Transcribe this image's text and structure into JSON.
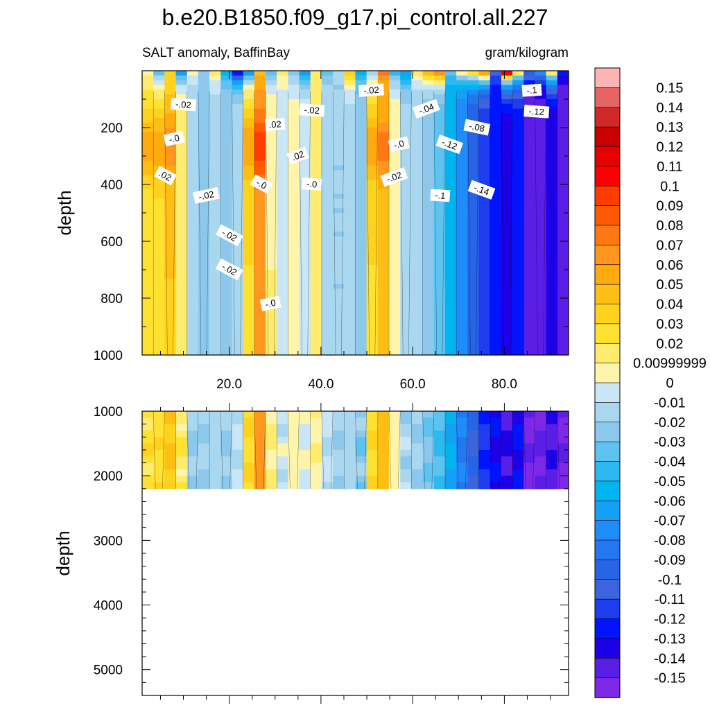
{
  "chart_data": {
    "type": "contour",
    "title": "b.e20.B1850.f09_g17.pi_control.all.227",
    "subtitle_left": "SALT anomaly, BaffinBay",
    "subtitle_right": "gram/kilogram",
    "top_panel": {
      "ylabel": "depth",
      "ylim": [
        1000,
        0
      ],
      "yticks": [
        200,
        400,
        600,
        800,
        1000
      ],
      "ytick_labels": [
        "200",
        "400",
        "600",
        "800",
        "1000"
      ],
      "xlim": [
        1,
        94
      ],
      "xticks": [
        20,
        40,
        60,
        80
      ],
      "xtick_labels": [
        "20.0",
        "40.0",
        "60.0",
        "80.0"
      ]
    },
    "bottom_panel": {
      "ylabel": "depth",
      "ylim": [
        5400,
        1000
      ],
      "data_bottom": 2200,
      "yticks": [
        1000,
        2000,
        3000,
        4000,
        5000
      ],
      "ytick_labels": [
        "1000",
        "2000",
        "3000",
        "4000",
        "5000"
      ]
    },
    "contour_labels": [
      {
        "text": "-.02",
        "x": 10,
        "y": 120
      },
      {
        "text": "-.0",
        "x": 8,
        "y": 240
      },
      {
        "text": ".02",
        "x": 6,
        "y": 370
      },
      {
        "text": "-.02",
        "x": 15,
        "y": 440
      },
      {
        "text": "-.02",
        "x": 20,
        "y": 580
      },
      {
        "text": "-.02",
        "x": 20,
        "y": 700
      },
      {
        "text": ".02",
        "x": 30,
        "y": 190
      },
      {
        "text": "-.02",
        "x": 38,
        "y": 140
      },
      {
        "text": ".02",
        "x": 35,
        "y": 300
      },
      {
        "text": "-.0",
        "x": 27,
        "y": 400
      },
      {
        "text": "-.0",
        "x": 38,
        "y": 400
      },
      {
        "text": "-.0",
        "x": 29,
        "y": 820
      },
      {
        "text": "-.02",
        "x": 51,
        "y": 70
      },
      {
        "text": "-.0",
        "x": 57,
        "y": 260
      },
      {
        "text": "-.02",
        "x": 56,
        "y": 375
      },
      {
        "text": "-.04",
        "x": 63,
        "y": 135
      },
      {
        "text": "-.12",
        "x": 68,
        "y": 260
      },
      {
        "text": "-.1",
        "x": 66,
        "y": 440
      },
      {
        "text": "-.08",
        "x": 74,
        "y": 200
      },
      {
        "text": "-.14",
        "x": 75,
        "y": 420
      },
      {
        "text": "-.1",
        "x": 86,
        "y": 70
      },
      {
        "text": "-.12",
        "x": 87,
        "y": 145
      }
    ],
    "colorbar": {
      "levels": [
        "0.15",
        "0.14",
        "0.13",
        "0.12",
        "0.11",
        "0.1",
        "0.09",
        "0.08",
        "0.07",
        "0.06",
        "0.05",
        "0.04",
        "0.03",
        "0.02",
        "0.00999999",
        "0",
        "-0.01",
        "-0.02",
        "-0.03",
        "-0.04",
        "-0.05",
        "-0.06",
        "-0.07",
        "-0.08",
        "-0.09",
        "-0.1",
        "-0.11",
        "-0.12",
        "-0.13",
        "-0.14",
        "-0.15"
      ],
      "colors": [
        "#FFB3B3",
        "#E86464",
        "#D22828",
        "#C80000",
        "#E60000",
        "#FF0000",
        "#FF3C00",
        "#FF5A00",
        "#FF7814",
        "#FF961E",
        "#FFAA0F",
        "#FFBE14",
        "#FFD21E",
        "#FFE132",
        "#FFEB6E",
        "#FFF5AA",
        "#C8E6F5",
        "#AAD7F0",
        "#8CC8EB",
        "#5FC3F0",
        "#2DB9F0",
        "#00B4F0",
        "#14A0F5",
        "#1E8CFA",
        "#2378F0",
        "#2864E6",
        "#3C64DC",
        "#1E3CF0",
        "#0014FF",
        "#1E00E6",
        "#5A1EE6",
        "#7D28E6"
      ]
    },
    "columns": [
      {
        "surf": 0.0,
        "val": 0.025
      },
      {
        "surf": -0.05,
        "val": 0.028
      },
      {
        "surf": 0.03,
        "val": 0.04
      },
      {
        "surf": -0.08,
        "val": 0.018
      },
      {
        "surf": 0.01,
        "val": -0.02
      },
      {
        "surf": -0.03,
        "val": -0.02
      },
      {
        "surf": 0.02,
        "val": -0.015
      },
      {
        "surf": -0.06,
        "val": -0.02
      },
      {
        "surf": -0.15,
        "val": -0.01
      },
      {
        "surf": -0.08,
        "val": 0.03
      },
      {
        "surf": 0.04,
        "val": 0.065
      },
      {
        "surf": -0.05,
        "val": 0.01
      },
      {
        "surf": 0.02,
        "val": -0.005
      },
      {
        "surf": -0.03,
        "val": 0.003
      },
      {
        "surf": -0.08,
        "val": 0.0
      },
      {
        "surf": 0.02,
        "val": 0.01
      },
      {
        "surf": -0.04,
        "val": -0.01
      },
      {
        "surf": -0.02,
        "val": -0.02
      },
      {
        "surf": 0.05,
        "val": -0.015
      },
      {
        "surf": -0.06,
        "val": -0.025
      },
      {
        "surf": -0.03,
        "val": 0.03
      },
      {
        "surf": 0.08,
        "val": 0.045
      },
      {
        "surf": -0.05,
        "val": 0.005
      },
      {
        "surf": -0.08,
        "val": -0.015
      },
      {
        "surf": 0.02,
        "val": -0.02
      },
      {
        "surf": 0.06,
        "val": -0.03
      },
      {
        "surf": 0.09,
        "val": -0.04
      },
      {
        "surf": -0.03,
        "val": -0.06
      },
      {
        "surf": 0.02,
        "val": -0.08
      },
      {
        "surf": 0.05,
        "val": -0.1
      },
      {
        "surf": 0.09,
        "val": -0.12
      },
      {
        "surf": -0.1,
        "val": -0.13
      },
      {
        "surf": 0.15,
        "val": -0.14
      },
      {
        "surf": 0.04,
        "val": -0.13
      },
      {
        "surf": -0.08,
        "val": -0.15
      },
      {
        "surf": -0.06,
        "val": -0.15
      },
      {
        "surf": 0.05,
        "val": -0.14
      },
      {
        "surf": -0.12,
        "val": -0.15
      }
    ]
  }
}
